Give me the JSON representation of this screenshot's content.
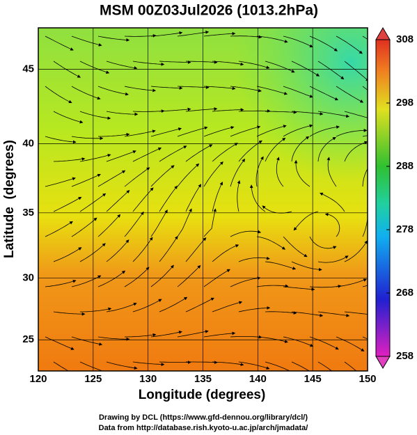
{
  "title": "MSM 00Z03Jul2026 (1013.2hPa)",
  "axes": {
    "x_label": "Longitude (degrees)",
    "y_label": "Latitude  (degrees)",
    "xlim": [
      120,
      150
    ],
    "xticks": [
      120,
      125,
      130,
      135,
      140,
      145,
      150
    ],
    "ylim": [
      22.4,
      47.6
    ],
    "yticks": [
      25,
      30,
      35,
      40,
      45
    ]
  },
  "colorbar": {
    "lim": [
      258,
      308
    ],
    "ticks": [
      258,
      268,
      278,
      288,
      298,
      308
    ]
  },
  "credits": [
    "Drawing by DCL (https://www.gfd-dennou.org/library/dcl/)",
    "Data from http://database.rish.kyoto-u.ac.jp/arch/jmadata/"
  ]
}
